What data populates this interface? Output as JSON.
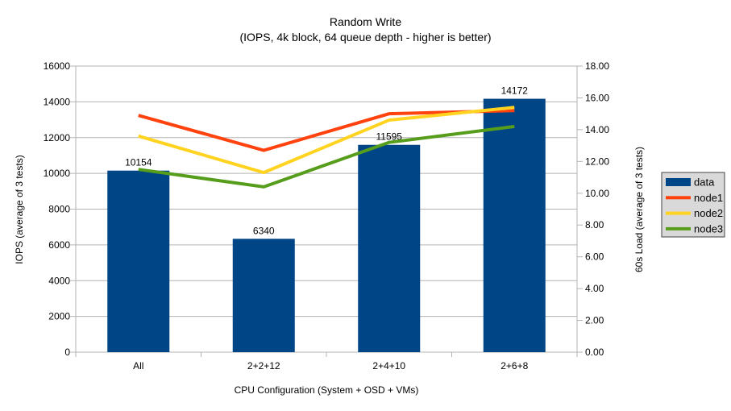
{
  "chart": {
    "title": "Random Write",
    "subtitle": "(IOPS, 4k block, 64 queue depth - higher is better)",
    "x_axis_title": "CPU Configuration (System + OSD + VMs)",
    "y_left_title": "IOPS (average of 3 tests)",
    "y_right_title": "60s Load (average of 3 tests)"
  },
  "chart_data": {
    "type": "bar+line",
    "title": "Random Write",
    "subtitle": "(IOPS, 4k block, 64 queue depth - higher is better)",
    "xlabel": "CPU Configuration (System + OSD + VMs)",
    "ylabel_left": "IOPS (average of 3 tests)",
    "ylabel_right": "60s Load (average of 3 tests)",
    "categories": [
      "All",
      "2+2+12",
      "2+4+10",
      "2+6+8"
    ],
    "bar_series": {
      "name": "data",
      "axis": "left",
      "color": "#004586",
      "values": [
        10154,
        6340,
        11595,
        14172
      ],
      "data_labels": [
        "10154",
        "6340",
        "11595",
        "14172"
      ]
    },
    "line_series": [
      {
        "name": "node1",
        "axis": "right",
        "color": "#FF420E",
        "values": [
          14.9,
          12.7,
          15.0,
          15.2
        ]
      },
      {
        "name": "node2",
        "axis": "right",
        "color": "#FFD320",
        "values": [
          13.6,
          11.3,
          14.6,
          15.4
        ]
      },
      {
        "name": "node3",
        "axis": "right",
        "color": "#579D1C",
        "values": [
          11.5,
          10.4,
          13.2,
          14.2
        ]
      }
    ],
    "left_axis": {
      "min": 0,
      "max": 16000,
      "step": 2000,
      "tick_labels": [
        "0",
        "2000",
        "4000",
        "6000",
        "8000",
        "10000",
        "12000",
        "14000",
        "16000"
      ]
    },
    "right_axis": {
      "min": 0,
      "max": 18,
      "step": 2,
      "tick_labels": [
        "0.00",
        "2.00",
        "4.00",
        "6.00",
        "8.00",
        "10.00",
        "12.00",
        "14.00",
        "16.00",
        "18.00"
      ]
    },
    "grid": true,
    "legend": {
      "position": "right",
      "entries": [
        "data",
        "node1",
        "node2",
        "node3"
      ]
    },
    "style": {
      "grid_color": "#b3b3b3",
      "axis_color": "#b3b3b3",
      "legend_bg": "#d9d9d9",
      "legend_border": "#424242",
      "text_color": "#000000",
      "background": "#ffffff"
    }
  }
}
